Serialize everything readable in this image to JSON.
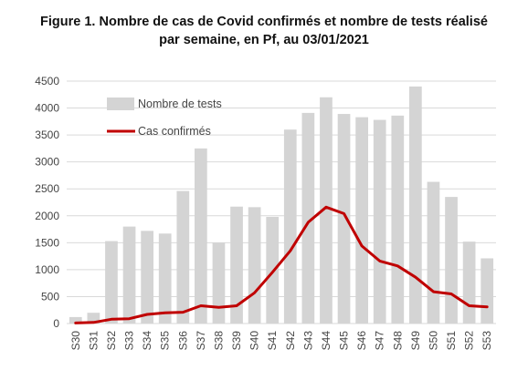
{
  "chart_data": {
    "type": "bar",
    "title_line1": "Figure 1. Nombre de cas de Covid confirmés et nombre de tests réalisé",
    "title_line2": "par semaine, en Pf, au 03/01/2021",
    "categories": [
      "S30",
      "S31",
      "S32",
      "S33",
      "S34",
      "S35",
      "S36",
      "S37",
      "S38",
      "S39",
      "S40",
      "S41",
      "S42",
      "S43",
      "S44",
      "S45",
      "S46",
      "S47",
      "S48",
      "S49",
      "S50",
      "S51",
      "S52",
      "S53"
    ],
    "ylim": [
      0,
      4500
    ],
    "yticks": [
      0,
      500,
      1000,
      1500,
      2000,
      2500,
      3000,
      3500,
      4000,
      4500
    ],
    "grid": true,
    "legend_position": "top-left",
    "series": [
      {
        "name": "Nombre de tests",
        "type": "bar",
        "color": "#d4d4d4",
        "values": [
          120,
          200,
          1530,
          1800,
          1720,
          1670,
          2460,
          3250,
          1500,
          2170,
          2160,
          1980,
          3600,
          3910,
          4200,
          3890,
          3830,
          3780,
          3860,
          4400,
          2630,
          2350,
          1520,
          1210
        ]
      },
      {
        "name": "Cas confirmés",
        "type": "line",
        "color": "#c00000",
        "values": [
          10,
          20,
          80,
          90,
          170,
          200,
          210,
          330,
          300,
          330,
          570,
          950,
          1350,
          1880,
          2160,
          2040,
          1440,
          1160,
          1070,
          860,
          590,
          550,
          330,
          310
        ]
      }
    ]
  }
}
